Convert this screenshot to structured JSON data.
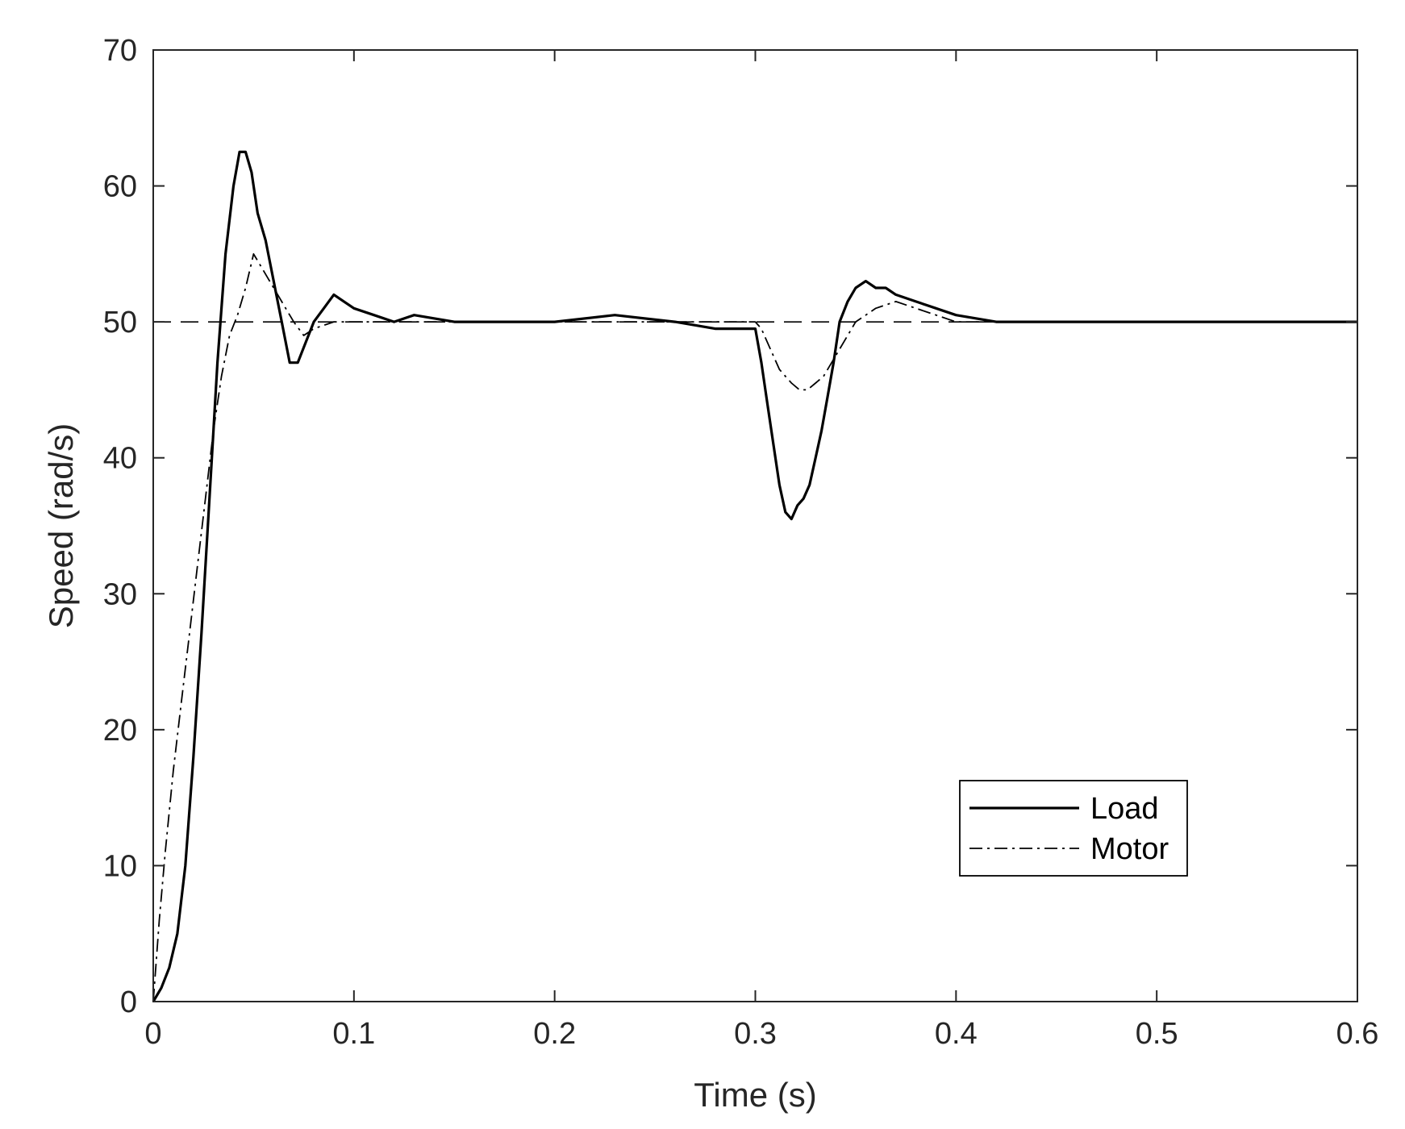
{
  "chart_data": {
    "type": "line",
    "title": "",
    "xlabel": "Time (s)",
    "ylabel": "Speed (rad/s)",
    "xlim": [
      0,
      0.6
    ],
    "ylim": [
      0,
      70
    ],
    "x_ticks": [
      0,
      0.1,
      0.2,
      0.3,
      0.4,
      0.5,
      0.6
    ],
    "x_tick_labels": [
      "0",
      "0.1",
      "0.2",
      "0.3",
      "0.4",
      "0.5",
      "0.6"
    ],
    "y_ticks": [
      0,
      10,
      20,
      30,
      40,
      50,
      60,
      70
    ],
    "y_tick_labels": [
      "0",
      "10",
      "20",
      "30",
      "40",
      "50",
      "60",
      "70"
    ],
    "grid": false,
    "legend_position": "lower-right",
    "reference": {
      "value": 50,
      "style": "dashed"
    },
    "series": [
      {
        "name": "Load",
        "style": "solid",
        "color": "#000000",
        "x": [
          0,
          0.004,
          0.008,
          0.012,
          0.016,
          0.02,
          0.024,
          0.028,
          0.032,
          0.036,
          0.04,
          0.043,
          0.046,
          0.049,
          0.052,
          0.056,
          0.06,
          0.064,
          0.068,
          0.072,
          0.076,
          0.08,
          0.085,
          0.09,
          0.095,
          0.1,
          0.11,
          0.12,
          0.13,
          0.15,
          0.17,
          0.2,
          0.23,
          0.26,
          0.28,
          0.3,
          0.303,
          0.306,
          0.309,
          0.312,
          0.315,
          0.318,
          0.321,
          0.324,
          0.327,
          0.33,
          0.333,
          0.336,
          0.339,
          0.342,
          0.346,
          0.35,
          0.355,
          0.36,
          0.365,
          0.37,
          0.38,
          0.39,
          0.4,
          0.42,
          0.45,
          0.5,
          0.55,
          0.6
        ],
        "y": [
          0,
          1,
          2.5,
          5,
          10,
          18,
          27,
          37,
          47,
          55,
          60,
          62.5,
          62.5,
          61,
          58,
          56,
          53,
          50,
          47,
          47,
          48.5,
          50,
          51,
          52,
          51.5,
          51,
          50.5,
          50,
          50.5,
          50,
          50,
          50,
          50.5,
          50,
          49.5,
          49.5,
          47,
          44,
          41,
          38,
          36,
          35.5,
          36.5,
          37,
          38,
          40,
          42,
          44.5,
          47,
          50,
          51.5,
          52.5,
          53,
          52.5,
          52.5,
          52,
          51.5,
          51,
          50.5,
          50,
          50,
          50,
          50,
          50
        ]
      },
      {
        "name": "Motor",
        "style": "dashdot",
        "color": "#000000",
        "x": [
          0,
          0.003,
          0.006,
          0.01,
          0.014,
          0.018,
          0.022,
          0.026,
          0.03,
          0.034,
          0.038,
          0.042,
          0.046,
          0.05,
          0.054,
          0.058,
          0.062,
          0.066,
          0.07,
          0.075,
          0.08,
          0.09,
          0.1,
          0.12,
          0.15,
          0.2,
          0.25,
          0.3,
          0.303,
          0.306,
          0.309,
          0.312,
          0.315,
          0.318,
          0.322,
          0.326,
          0.33,
          0.334,
          0.338,
          0.342,
          0.346,
          0.35,
          0.355,
          0.36,
          0.37,
          0.38,
          0.39,
          0.4,
          0.45,
          0.5,
          0.55,
          0.6
        ],
        "y": [
          0,
          6,
          11,
          17,
          22,
          27,
          32,
          37,
          42,
          46,
          49,
          50.5,
          52.5,
          55,
          54,
          53,
          52,
          51,
          50,
          49,
          49.5,
          50,
          50,
          50,
          50,
          50,
          50,
          50,
          49.5,
          48.5,
          47.5,
          46.5,
          46,
          45.5,
          45,
          45,
          45.5,
          46,
          47,
          48,
          49,
          50,
          50.5,
          51,
          51.5,
          51,
          50.5,
          50,
          50,
          50,
          50,
          50
        ]
      }
    ]
  }
}
